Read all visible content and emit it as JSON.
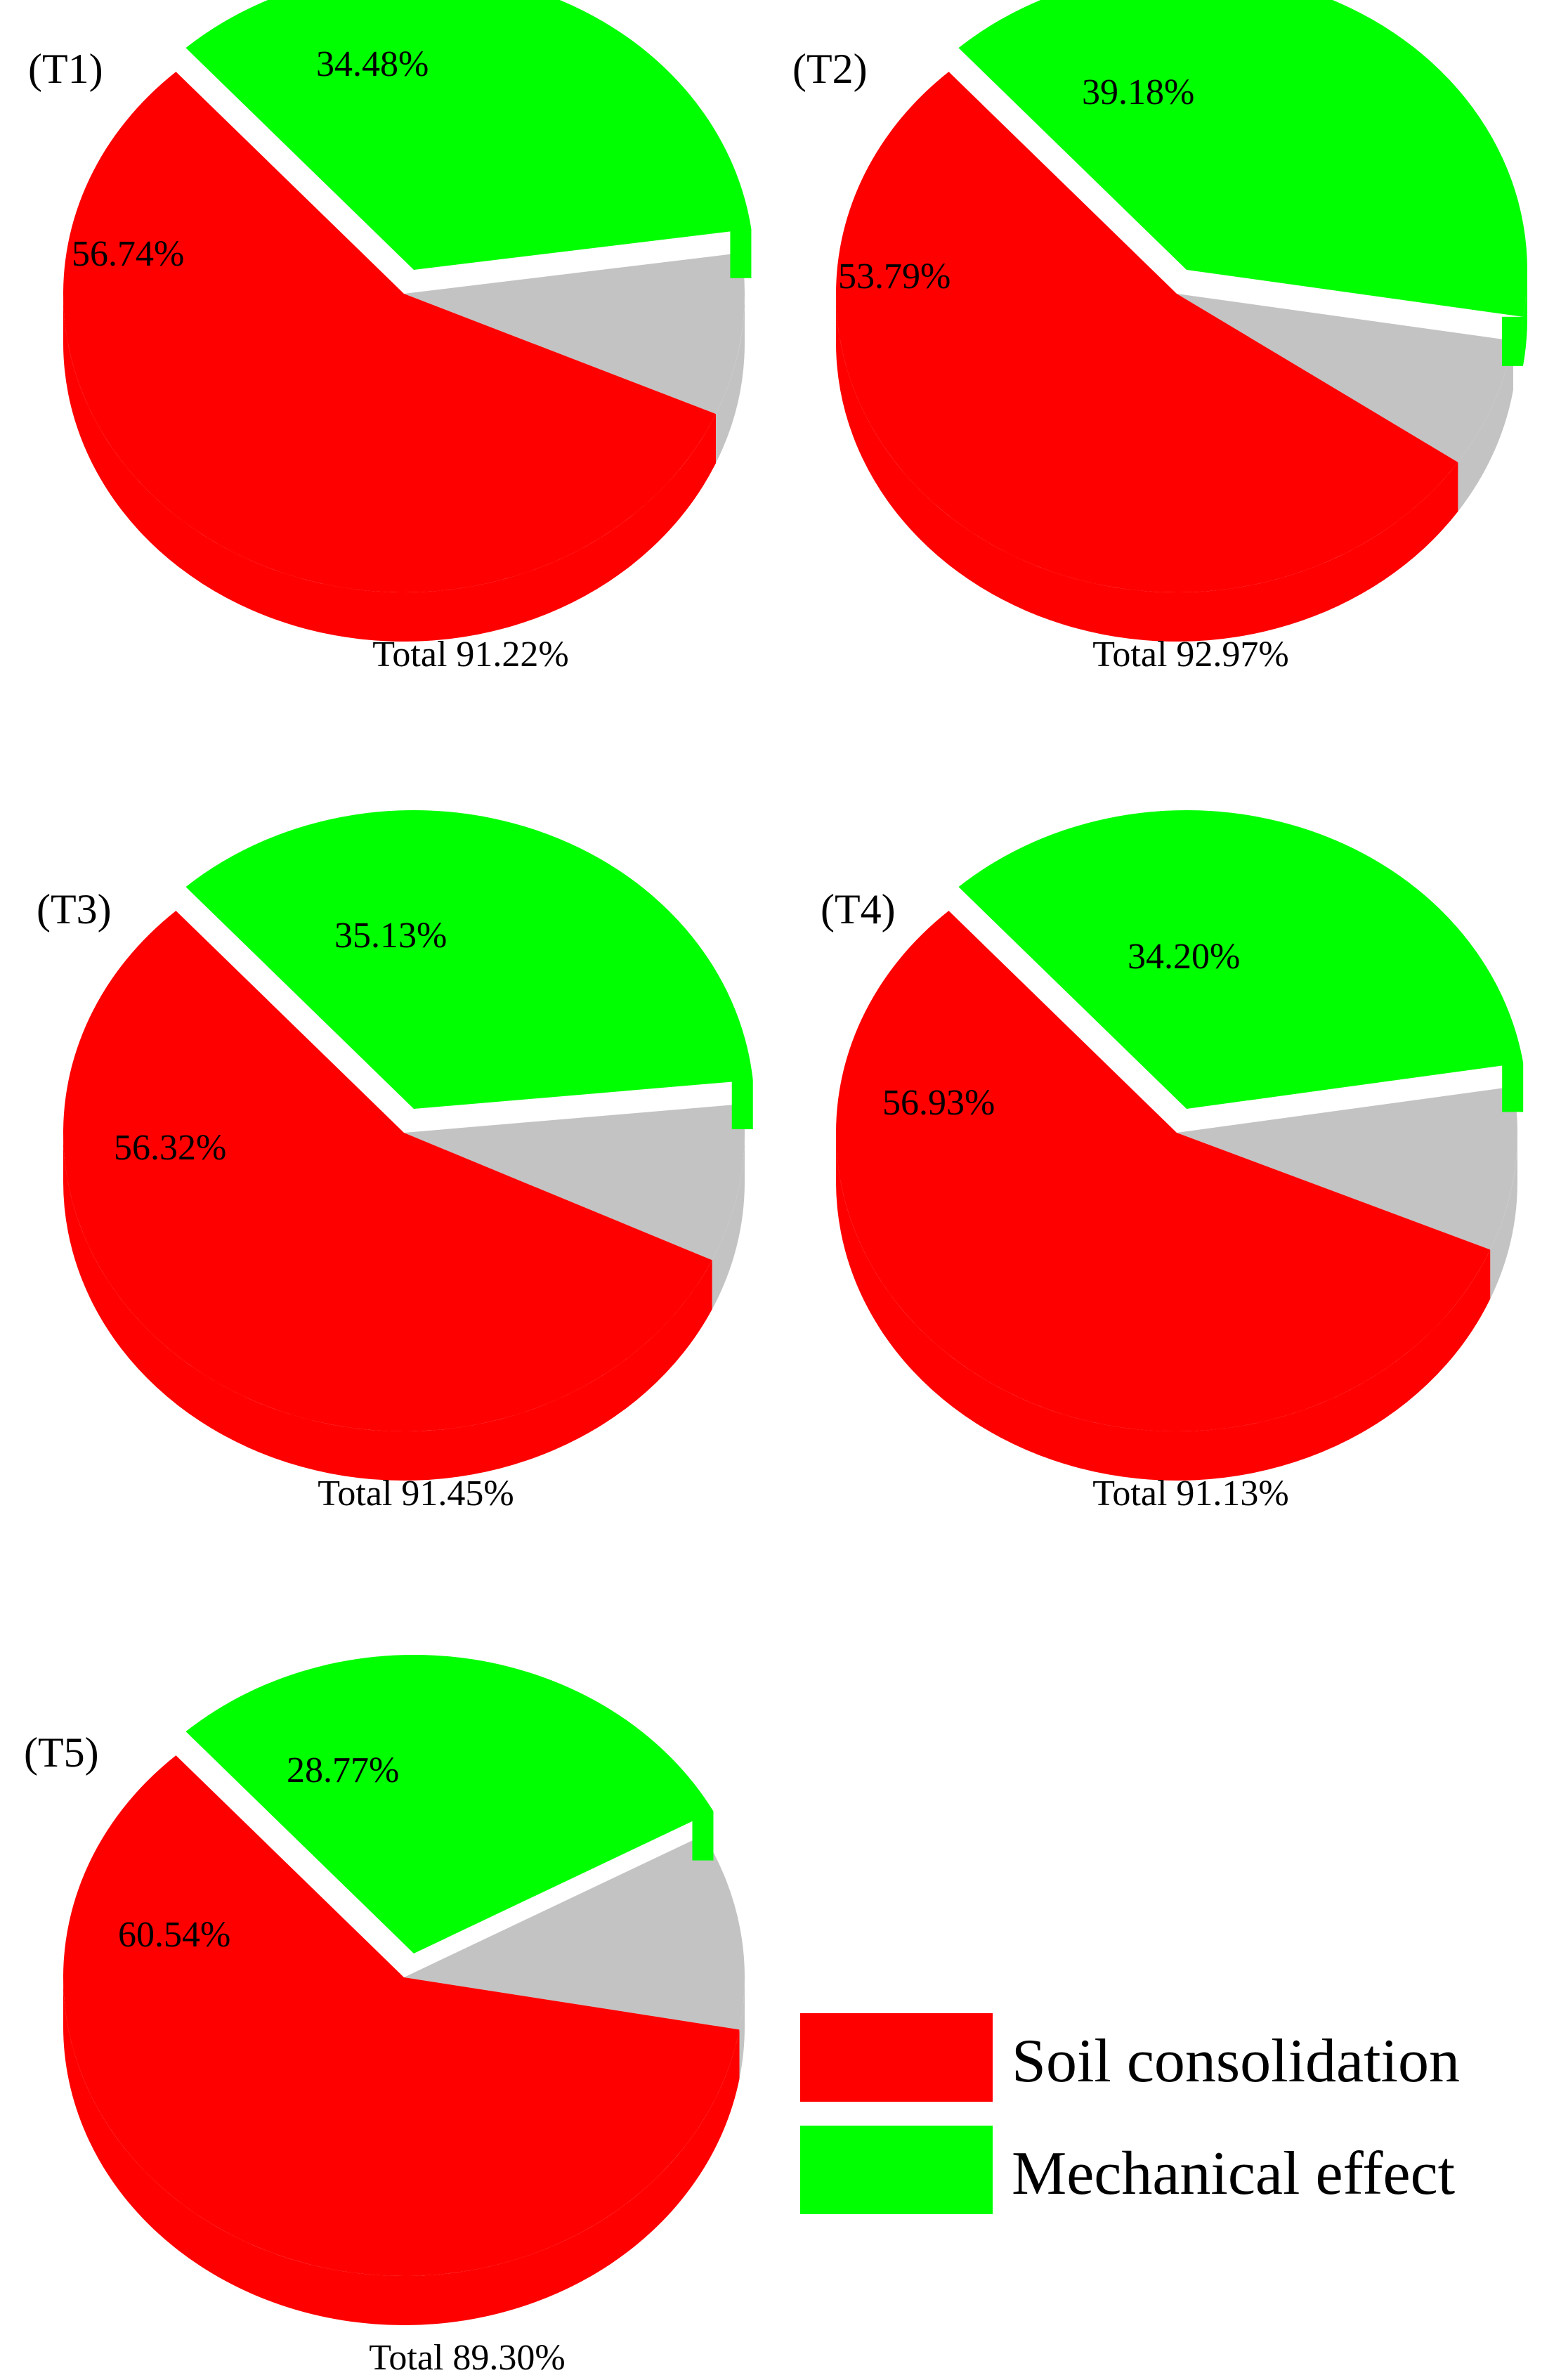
{
  "colors": {
    "soil": "#ff0000",
    "mechanical": "#00ff00",
    "other": "#c3c3c3",
    "background": "#ffffff"
  },
  "legend": {
    "items": [
      {
        "label": "Soil consolidation",
        "color": "#ff0000"
      },
      {
        "label": "Mechanical effect",
        "color": "#00ff00"
      }
    ]
  },
  "chart_data": [
    {
      "type": "pie",
      "title": "(T1)",
      "total_label": "Total 91.22%",
      "slices": [
        {
          "series": "Soil consolidation",
          "value": 56.74,
          "label": "56.74%"
        },
        {
          "series": "Mechanical effect",
          "value": 34.48,
          "label": "34.48%"
        },
        {
          "series": "",
          "value": 8.78,
          "label": ""
        }
      ]
    },
    {
      "type": "pie",
      "title": "(T2)",
      "total_label": "Total 92.97%",
      "slices": [
        {
          "series": "Soil consolidation",
          "value": 53.79,
          "label": "53.79%"
        },
        {
          "series": "Mechanical effect",
          "value": 39.18,
          "label": "39.18%"
        },
        {
          "series": "",
          "value": 7.03,
          "label": ""
        }
      ]
    },
    {
      "type": "pie",
      "title": "(T3)",
      "total_label": "Total 91.45%",
      "slices": [
        {
          "series": "Soil consolidation",
          "value": 56.32,
          "label": "56.32%"
        },
        {
          "series": "Mechanical effect",
          "value": 35.13,
          "label": "35.13%"
        },
        {
          "series": "",
          "value": 8.55,
          "label": ""
        }
      ]
    },
    {
      "type": "pie",
      "title": "(T4)",
      "total_label": "Total 91.13%",
      "slices": [
        {
          "series": "Soil consolidation",
          "value": 56.93,
          "label": "56.93%"
        },
        {
          "series": "Mechanical effect",
          "value": 34.2,
          "label": "34.20%"
        },
        {
          "series": "",
          "value": 8.87,
          "label": ""
        }
      ]
    },
    {
      "type": "pie",
      "title": "(T5)",
      "total_label": "Total 89.30%",
      "slices": [
        {
          "series": "Soil consolidation",
          "value": 60.54,
          "label": "60.54%"
        },
        {
          "series": "Mechanical effect",
          "value": 28.77,
          "label": "28.77%"
        },
        {
          "series": "",
          "value": 10.7,
          "label": ""
        }
      ]
    }
  ]
}
